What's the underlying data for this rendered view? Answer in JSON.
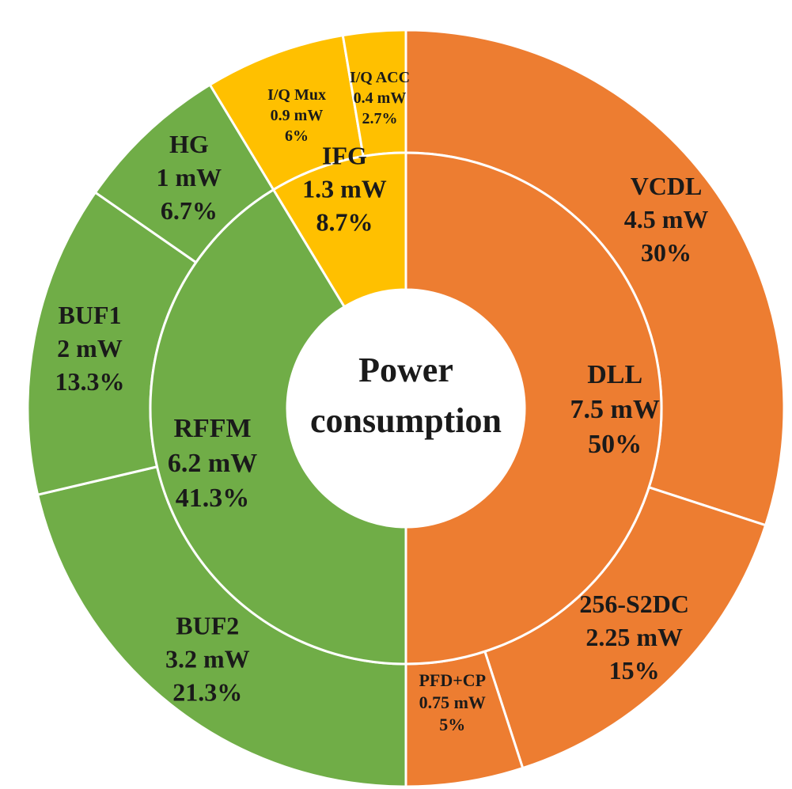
{
  "chart_data": {
    "type": "pie",
    "center_label": [
      "Power",
      "consumption"
    ],
    "colors": {
      "DLL": "#ed7d31",
      "RFFM": "#70ad47",
      "IFG": "#ffc000"
    },
    "inner_ring": [
      {
        "name": "DLL",
        "value": 7.5,
        "lines": [
          "DLL",
          "7.5 mW",
          "50%"
        ]
      },
      {
        "name": "RFFM",
        "value": 6.2,
        "lines": [
          "RFFM",
          "6.2 mW",
          "41.3%"
        ]
      },
      {
        "name": "IFG",
        "value": 1.3,
        "lines": [
          "IFG",
          "1.3 mW",
          "8.7%"
        ]
      }
    ],
    "outer_ring": [
      {
        "name": "VCDL",
        "parent": "DLL",
        "value": 4.5,
        "lines": [
          "VCDL",
          "4.5 mW",
          "30%"
        ]
      },
      {
        "name": "256-S2DC",
        "parent": "DLL",
        "value": 2.25,
        "lines": [
          "256-S2DC",
          "2.25 mW",
          "15%"
        ]
      },
      {
        "name": "PFD+CP",
        "parent": "DLL",
        "value": 0.75,
        "lines": [
          "PFD+CP",
          "0.75 mW",
          "5%"
        ]
      },
      {
        "name": "BUF2",
        "parent": "RFFM",
        "value": 3.2,
        "lines": [
          "BUF2",
          "3.2 mW",
          "21.3%"
        ]
      },
      {
        "name": "BUF1",
        "parent": "RFFM",
        "value": 2.0,
        "lines": [
          "BUF1",
          "2 mW",
          "13.3%"
        ]
      },
      {
        "name": "HG",
        "parent": "RFFM",
        "value": 1.0,
        "lines": [
          "HG",
          "1 mW",
          "6.7%"
        ]
      },
      {
        "name": "I/Q Mux",
        "parent": "IFG",
        "value": 0.9,
        "lines": [
          "I/Q Mux",
          "0.9 mW",
          "6%"
        ]
      },
      {
        "name": "I/Q ACC",
        "parent": "IFG",
        "value": 0.4,
        "lines": [
          "I/Q ACC",
          "0.4 mW",
          "2.7%"
        ]
      }
    ]
  }
}
